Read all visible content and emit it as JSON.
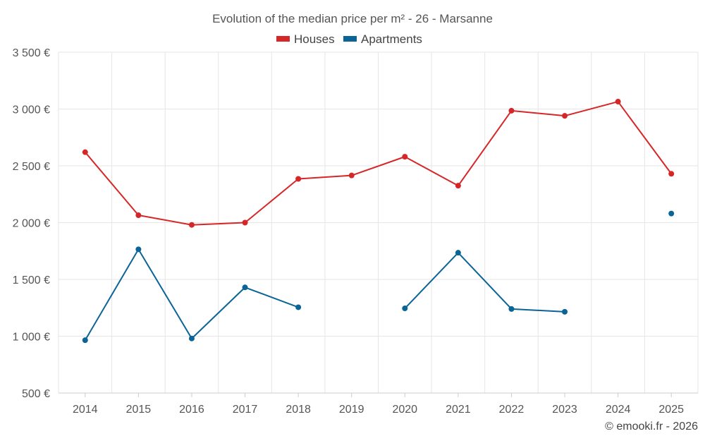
{
  "chart_data": {
    "type": "line",
    "title": "Evolution of the median price per m² - 26 - Marsanne",
    "categories": [
      "2014",
      "2015",
      "2016",
      "2017",
      "2018",
      "2019",
      "2020",
      "2021",
      "2022",
      "2023",
      "2024",
      "2025"
    ],
    "y_ticks": [
      500,
      1000,
      1500,
      2000,
      2500,
      3000,
      3500
    ],
    "y_tick_labels": [
      "500 €",
      "1 000 €",
      "1 500 €",
      "2 000 €",
      "2 500 €",
      "3 000 €",
      "3 500 €"
    ],
    "ylim": [
      500,
      3500
    ],
    "grid": true,
    "legend_position": "top-center",
    "series": [
      {
        "name": "Houses",
        "color": "#d62728",
        "values": [
          2620,
          2065,
          1980,
          2000,
          2385,
          2415,
          2580,
          2325,
          2985,
          2940,
          3065,
          2430
        ]
      },
      {
        "name": "Apartments",
        "color": "#0a6496",
        "values": [
          965,
          1765,
          980,
          1430,
          1255,
          null,
          1245,
          1735,
          1240,
          1215,
          null,
          2080
        ]
      }
    ],
    "credit": "© emooki.fr - 2026"
  }
}
